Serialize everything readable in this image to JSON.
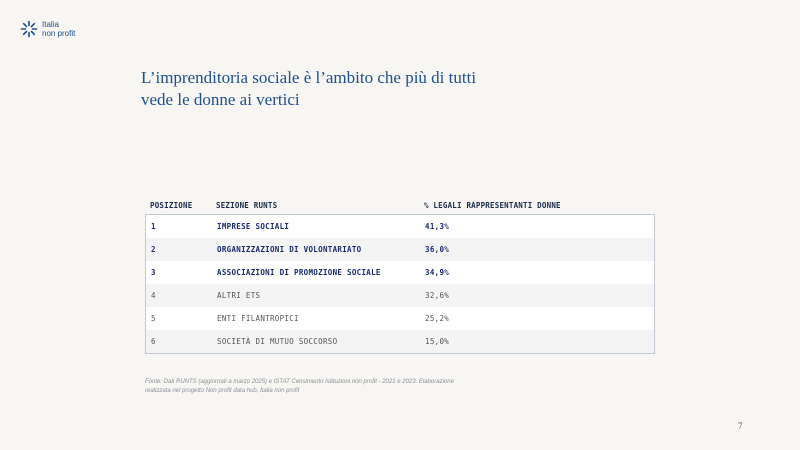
{
  "logo": {
    "line1": "Italia",
    "line2": "non profit"
  },
  "title": "L’imprenditoria sociale è l’ambito che più di tutti vede le donne ai vertici",
  "table": {
    "headers": [
      "POSIZIONE",
      "SEZIONE RUNTS",
      "% LEGALI RAPPRESENTANTI DONNE"
    ],
    "rows": [
      {
        "pos": "1",
        "section": "IMPRESE SOCIALI",
        "pct": "41,3%"
      },
      {
        "pos": "2",
        "section": "ORGANIZZAZIONI DI VOLONTARIATO",
        "pct": "36,0%"
      },
      {
        "pos": "3",
        "section": "ASSOCIAZIONI DI PROMOZIONE SOCIALE",
        "pct": "34,9%"
      },
      {
        "pos": "4",
        "section": "ALTRI ETS",
        "pct": "32,6%"
      },
      {
        "pos": "5",
        "section": "ENTI FILANTROPICI",
        "pct": "25,2%"
      },
      {
        "pos": "6",
        "section": "SOCIETÀ DI MUTUO SOCCORSO",
        "pct": "15,0%"
      }
    ]
  },
  "source": "Fonte: Dati RUNTS (aggiornati a marzo 2025) e ISTAT Censimento Istituzioni non profit - 2021 e 2023. Elaborazione realizzata nel progetto Non profit data hub, Italia non profit",
  "page_number": "7",
  "colors": {
    "brand": "#1e4f8f",
    "highlight_text": "#1a2b6e",
    "background": "#f7f6f2"
  }
}
